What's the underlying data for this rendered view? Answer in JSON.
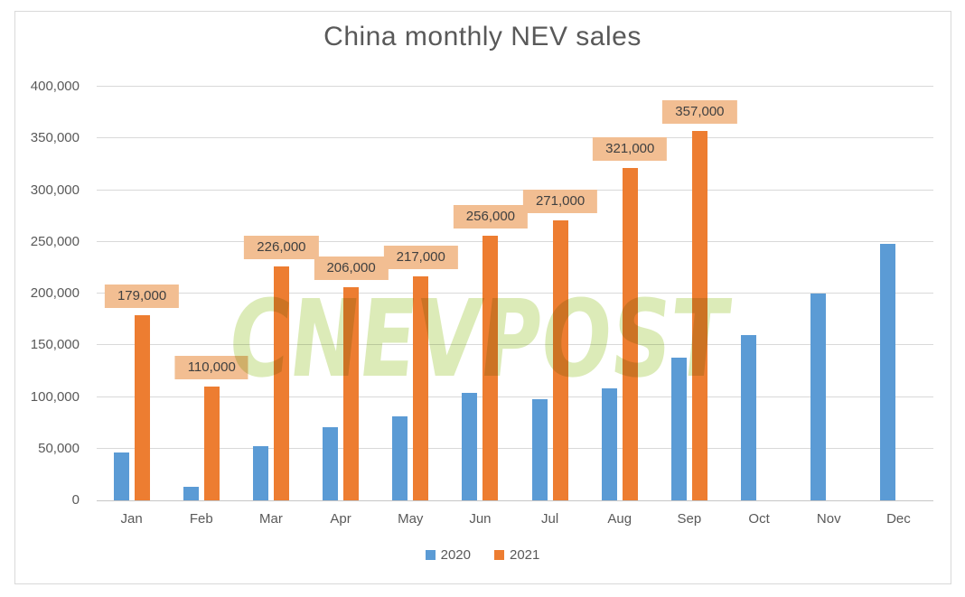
{
  "chart_data": {
    "type": "bar",
    "title": "China monthly NEV sales",
    "categories": [
      "Jan",
      "Feb",
      "Mar",
      "Apr",
      "May",
      "Jun",
      "Jul",
      "Aug",
      "Sep",
      "Oct",
      "Nov",
      "Dec"
    ],
    "series": [
      {
        "name": "2020",
        "color": "#5B9BD5",
        "values": [
          46000,
          13000,
          52000,
          71000,
          81000,
          104000,
          98000,
          108000,
          138000,
          160000,
          200000,
          248000
        ],
        "data_labels": [
          null,
          null,
          null,
          null,
          null,
          null,
          null,
          null,
          null,
          null,
          null,
          null
        ]
      },
      {
        "name": "2021",
        "color": "#ED7D31",
        "values": [
          179000,
          110000,
          226000,
          206000,
          217000,
          256000,
          271000,
          321000,
          357000,
          null,
          null,
          null
        ],
        "data_labels": [
          "179,000",
          "110,000",
          "226,000",
          "206,000",
          "217,000",
          "256,000",
          "271,000",
          "321,000",
          "357,000",
          null,
          null,
          null
        ]
      }
    ],
    "ylim": [
      0,
      400000
    ],
    "y_ticks": [
      {
        "value": 400000,
        "label": "400,000"
      },
      {
        "value": 350000,
        "label": "350,000"
      },
      {
        "value": 300000,
        "label": "300,000"
      },
      {
        "value": 250000,
        "label": "250,000"
      },
      {
        "value": 200000,
        "label": "200,000"
      },
      {
        "value": 150000,
        "label": "150,000"
      },
      {
        "value": 100000,
        "label": "100,000"
      },
      {
        "value": 50000,
        "label": "50,000"
      },
      {
        "value": 0,
        "label": "0"
      }
    ],
    "grid": "horizontal",
    "legend_position": "bottom"
  },
  "watermark": {
    "text": "CNEVPOST",
    "color": "#DCEBB8"
  },
  "colors": {
    "title_text": "#595959",
    "axis_text": "#595959",
    "gridline": "#D9D9D9",
    "data_label_bg": "#F2BE92",
    "data_label_text": "#404040"
  }
}
